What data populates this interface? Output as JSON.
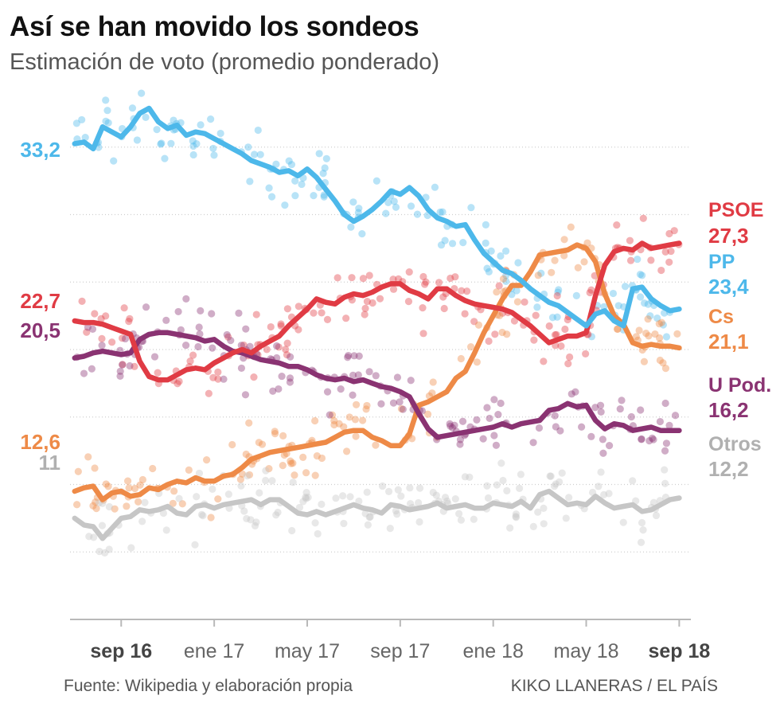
{
  "chart_data": {
    "type": "line",
    "title": "Así se han movido los sondeos",
    "subtitle": "Estimación de voto (promedio ponderado)",
    "source": "Fuente: Wikipedia y elaboración propia",
    "credit": "KIKO LLANERAS / EL PAÍS",
    "x_ticks": [
      {
        "label": "sep 16",
        "t": 2,
        "bold": true
      },
      {
        "label": "ene 17",
        "t": 6,
        "bold": false
      },
      {
        "label": "may 17",
        "t": 10,
        "bold": false
      },
      {
        "label": "sep 17",
        "t": 14,
        "bold": false
      },
      {
        "label": "ene 18",
        "t": 18,
        "bold": false
      },
      {
        "label": "may 18",
        "t": 22,
        "bold": false
      },
      {
        "label": "sep 18",
        "t": 26,
        "bold": true
      }
    ],
    "x_range": [
      -0.2,
      26.5
    ],
    "ylim": [
      5,
      37
    ],
    "gridlines": [
      9,
      13,
      17,
      21,
      25,
      29,
      33
    ],
    "series": [
      {
        "name": "PP",
        "color": "#4db8ea",
        "start_label": "33,2",
        "end_value": "23,4",
        "t": [
          0,
          0.4,
          0.8,
          1.2,
          1.6,
          2,
          2.4,
          2.8,
          3.2,
          3.6,
          4,
          4.4,
          4.8,
          5.2,
          5.6,
          6,
          6.4,
          6.8,
          7.2,
          7.6,
          8,
          8.4,
          8.8,
          9.2,
          9.6,
          10,
          10.4,
          10.8,
          11.2,
          11.6,
          12,
          12.4,
          12.8,
          13.2,
          13.6,
          14,
          14.4,
          14.8,
          15.2,
          15.6,
          16,
          16.4,
          16.8,
          17.2,
          17.6,
          18,
          18.4,
          18.8,
          19.2,
          19.6,
          20,
          20.4,
          20.8,
          21.2,
          21.6,
          22,
          22.4,
          22.8,
          23.2,
          23.6,
          24,
          24.4,
          24.8,
          25.2,
          25.6,
          26
        ],
        "v": [
          33.2,
          33.3,
          32.9,
          34.2,
          33.9,
          33.6,
          34.2,
          35.0,
          35.3,
          34.5,
          34.1,
          34.3,
          33.7,
          33.9,
          33.8,
          33.5,
          33.2,
          32.9,
          32.6,
          32.2,
          32.0,
          31.8,
          31.5,
          31.6,
          31.3,
          31.7,
          31.2,
          30.5,
          29.8,
          29.0,
          28.6,
          28.9,
          29.3,
          29.8,
          30.4,
          30.2,
          30.6,
          30.1,
          29.3,
          28.8,
          28.6,
          28.3,
          28.4,
          27.5,
          26.7,
          26.2,
          25.7,
          25.5,
          25.1,
          24.6,
          24.2,
          23.8,
          23.6,
          23.2,
          22.8,
          22.4,
          23.1,
          23.3,
          22.7,
          22.4,
          24.6,
          24.7,
          24.0,
          23.6,
          23.3,
          23.4
        ]
      },
      {
        "name": "PSOE",
        "color": "#e03b44",
        "start_label": "22,7",
        "end_value": "27,3",
        "t": [
          0,
          0.4,
          0.8,
          1.2,
          1.6,
          2,
          2.4,
          2.8,
          3.2,
          3.6,
          4,
          4.4,
          4.8,
          5.2,
          5.6,
          6,
          6.4,
          6.8,
          7.2,
          7.6,
          8,
          8.4,
          8.8,
          9.2,
          9.6,
          10,
          10.4,
          10.8,
          11.2,
          11.6,
          12,
          12.4,
          12.8,
          13.2,
          13.6,
          14,
          14.4,
          14.8,
          15.2,
          15.6,
          16,
          16.4,
          16.8,
          17.2,
          17.6,
          18,
          18.4,
          18.8,
          19.2,
          19.6,
          20,
          20.4,
          20.8,
          21.2,
          21.6,
          22,
          22.4,
          22.8,
          23.2,
          23.6,
          24,
          24.4,
          24.8,
          25.2,
          25.6,
          26
        ],
        "v": [
          22.7,
          22.6,
          22.6,
          22.5,
          22.3,
          22.1,
          21.9,
          20.3,
          19.4,
          19.2,
          19.2,
          19.5,
          19.8,
          19.9,
          19.8,
          20.2,
          20.5,
          20.8,
          21.0,
          20.8,
          21.2,
          21.5,
          21.8,
          22.4,
          22.9,
          23.4,
          24.0,
          23.8,
          23.7,
          24.1,
          24.3,
          24.2,
          24.4,
          24.7,
          24.9,
          24.9,
          24.5,
          24.3,
          24.0,
          24.6,
          24.6,
          24.2,
          23.9,
          23.7,
          23.6,
          23.5,
          23.4,
          23.2,
          22.8,
          22.4,
          21.9,
          21.4,
          21.6,
          21.8,
          21.8,
          22.0,
          24.2,
          26.0,
          26.8,
          27.0,
          26.9,
          27.3,
          27.0,
          27.1,
          27.2,
          27.3
        ]
      },
      {
        "name": "Cs",
        "color": "#ee8a47",
        "start_label": "12,6",
        "end_value": "21,1",
        "t": [
          0,
          0.4,
          0.8,
          1.2,
          1.6,
          2,
          2.4,
          2.8,
          3.2,
          3.6,
          4,
          4.4,
          4.8,
          5.2,
          5.6,
          6,
          6.4,
          6.8,
          7.2,
          7.6,
          8,
          8.4,
          8.8,
          9.2,
          9.6,
          10,
          10.4,
          10.8,
          11.2,
          11.6,
          12,
          12.4,
          12.8,
          13.2,
          13.6,
          14,
          14.4,
          14.8,
          15.2,
          15.6,
          16,
          16.4,
          16.8,
          17.2,
          17.6,
          18,
          18.4,
          18.8,
          19.2,
          19.6,
          20,
          20.4,
          20.8,
          21.2,
          21.6,
          22,
          22.4,
          22.8,
          23.2,
          23.6,
          24,
          24.4,
          24.8,
          25.2,
          25.6,
          26
        ],
        "v": [
          12.6,
          12.8,
          12.9,
          12.1,
          12.5,
          12.6,
          12.3,
          12.4,
          12.8,
          12.7,
          13.0,
          13.2,
          13.1,
          13.4,
          13.2,
          13.2,
          13.5,
          13.6,
          14.0,
          14.5,
          14.7,
          14.9,
          15.0,
          15.1,
          15.2,
          15.3,
          15.4,
          15.5,
          15.8,
          16.1,
          16.2,
          16.2,
          15.8,
          15.6,
          15.3,
          15.3,
          16.0,
          17.7,
          17.9,
          18.2,
          18.5,
          19.3,
          19.7,
          20.8,
          22.0,
          23.0,
          24.0,
          24.8,
          24.8,
          25.6,
          26.6,
          26.7,
          26.8,
          26.9,
          27.2,
          27.0,
          26.2,
          24.3,
          23.0,
          22.5,
          21.4,
          21.2,
          21.3,
          21.2,
          21.2,
          21.1
        ]
      },
      {
        "name": "U Pod.",
        "color": "#8a3372",
        "start_label": "20,5",
        "end_value": "16,2",
        "t": [
          0,
          0.4,
          0.8,
          1.2,
          1.6,
          2,
          2.4,
          2.8,
          3.2,
          3.6,
          4,
          4.4,
          4.8,
          5.2,
          5.6,
          6,
          6.4,
          6.8,
          7.2,
          7.6,
          8,
          8.4,
          8.8,
          9.2,
          9.6,
          10,
          10.4,
          10.8,
          11.2,
          11.6,
          12,
          12.4,
          12.8,
          13.2,
          13.6,
          14,
          14.4,
          14.8,
          15.2,
          15.6,
          16,
          16.4,
          16.8,
          17.2,
          17.6,
          18,
          18.4,
          18.8,
          19.2,
          19.6,
          20,
          20.4,
          20.8,
          21.2,
          21.6,
          22,
          22.4,
          22.8,
          23.2,
          23.6,
          24,
          24.4,
          24.8,
          25.2,
          25.6,
          26
        ],
        "v": [
          20.5,
          20.6,
          20.8,
          20.9,
          20.8,
          20.7,
          20.8,
          21.6,
          21.9,
          22.0,
          22.0,
          21.9,
          21.8,
          21.7,
          21.5,
          21.6,
          21.2,
          20.9,
          20.8,
          20.6,
          20.4,
          20.3,
          20.2,
          20.0,
          20.0,
          19.8,
          19.5,
          19.3,
          19.2,
          19.3,
          19.1,
          19.2,
          19.0,
          18.8,
          18.7,
          18.5,
          18.2,
          17.2,
          16.3,
          15.8,
          15.9,
          16.0,
          16.1,
          16.2,
          16.3,
          16.4,
          16.6,
          16.4,
          16.6,
          16.7,
          16.8,
          17.4,
          17.5,
          17.8,
          17.6,
          17.7,
          16.8,
          16.3,
          16.6,
          16.5,
          16.2,
          16.3,
          16.4,
          16.2,
          16.2,
          16.2
        ]
      },
      {
        "name": "Otros",
        "color": "#c6c6c6",
        "start_label": "11",
        "end_value": "12,2",
        "t": [
          0,
          0.4,
          0.8,
          1.2,
          1.6,
          2,
          2.4,
          2.8,
          3.2,
          3.6,
          4,
          4.4,
          4.8,
          5.2,
          5.6,
          6,
          6.4,
          6.8,
          7.2,
          7.6,
          8,
          8.4,
          8.8,
          9.2,
          9.6,
          10,
          10.4,
          10.8,
          11.2,
          11.6,
          12,
          12.4,
          12.8,
          13.2,
          13.6,
          14,
          14.4,
          14.8,
          15.2,
          15.6,
          16,
          16.4,
          16.8,
          17.2,
          17.6,
          18,
          18.4,
          18.8,
          19.2,
          19.6,
          20,
          20.4,
          20.8,
          21.2,
          21.6,
          22,
          22.4,
          22.8,
          23.2,
          23.6,
          24,
          24.4,
          24.8,
          25.2,
          25.6,
          26
        ],
        "v": [
          11.0,
          10.6,
          10.5,
          9.8,
          10.4,
          11.0,
          11.1,
          11.5,
          11.4,
          11.5,
          11.7,
          11.3,
          11.2,
          11.7,
          11.8,
          11.6,
          11.8,
          11.9,
          12.0,
          12.1,
          11.8,
          12.1,
          12.1,
          11.7,
          11.3,
          11.2,
          11.4,
          11.2,
          11.4,
          11.6,
          11.8,
          11.6,
          11.5,
          11.3,
          11.8,
          11.7,
          11.5,
          11.6,
          11.7,
          11.9,
          11.6,
          11.7,
          11.8,
          11.6,
          11.6,
          11.9,
          11.8,
          11.7,
          12.0,
          11.6,
          12.4,
          12.6,
          12.2,
          11.8,
          11.9,
          11.8,
          12.3,
          11.9,
          11.6,
          11.7,
          11.8,
          11.4,
          11.5,
          11.8,
          12.1,
          12.2
        ]
      }
    ],
    "end_labels": [
      {
        "series": "PSOE",
        "name": "PSOE",
        "value": "27,3"
      },
      {
        "series": "PP",
        "name": "PP",
        "value": "23,4"
      },
      {
        "series": "Cs",
        "name": "Cs",
        "value": "21,1"
      },
      {
        "series": "U Pod.",
        "name": "U Pod.",
        "value": "16,2"
      },
      {
        "series": "Otros",
        "name": "Otros",
        "value": "12,2"
      }
    ]
  }
}
